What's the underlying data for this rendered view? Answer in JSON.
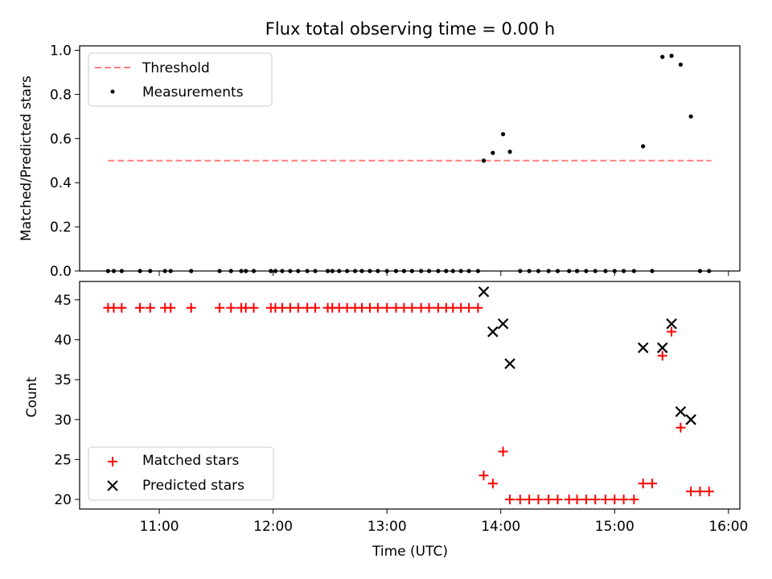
{
  "title": "Flux total observing time = 0.00 h",
  "colors": {
    "threshold": "#ff7f7f",
    "measurement": "#000000",
    "matched": "#ff0000",
    "predicted": "#000000"
  },
  "chart_data": [
    {
      "type": "scatter",
      "panel": "top",
      "ylabel": "Matched/Predicted stars",
      "xlabel": "",
      "xlim": [
        10.3,
        16.1
      ],
      "ylim": [
        0.0,
        1.02
      ],
      "yticks": [
        0.0,
        0.2,
        0.4,
        0.6,
        0.8,
        1.0
      ],
      "ytick_labels": [
        "0.0",
        "0.2",
        "0.4",
        "0.6",
        "0.8",
        "1.0"
      ],
      "xticks": [
        11,
        12,
        13,
        14,
        15,
        16
      ],
      "legend": {
        "location": "top-left",
        "entries": [
          "Threshold",
          "Measurements"
        ]
      },
      "threshold": {
        "name": "Threshold",
        "value": 0.5,
        "x_range": [
          10.55,
          15.85
        ]
      },
      "series": [
        {
          "name": "Measurements",
          "x": [
            10.55,
            10.6,
            10.67,
            10.83,
            10.92,
            11.05,
            11.1,
            11.28,
            11.53,
            11.63,
            11.72,
            11.76,
            11.83,
            11.98,
            12.02,
            12.08,
            12.15,
            12.22,
            12.3,
            12.37,
            12.48,
            12.52,
            12.58,
            12.65,
            12.72,
            12.78,
            12.85,
            12.92,
            13.0,
            13.08,
            13.15,
            13.22,
            13.3,
            13.37,
            13.45,
            13.52,
            13.58,
            13.65,
            13.72,
            13.8,
            13.85,
            13.93,
            14.02,
            14.08,
            14.17,
            14.25,
            14.33,
            14.42,
            14.5,
            14.6,
            14.67,
            14.75,
            14.83,
            14.92,
            15.0,
            15.08,
            15.17,
            15.25,
            15.33,
            15.42,
            15.5,
            15.58,
            15.67,
            15.75,
            15.83
          ],
          "y": [
            0,
            0,
            0,
            0,
            0,
            0,
            0,
            0,
            0,
            0,
            0,
            0,
            0,
            0,
            0,
            0,
            0,
            0,
            0,
            0,
            0,
            0,
            0,
            0,
            0,
            0,
            0,
            0,
            0,
            0,
            0,
            0,
            0,
            0,
            0,
            0,
            0,
            0,
            0,
            0,
            0.5,
            0.535,
            0.62,
            0.54,
            0,
            0,
            0,
            0,
            0,
            0,
            0,
            0,
            0,
            0,
            0,
            0,
            0,
            0.565,
            0,
            0.97,
            0.975,
            0.935,
            0.7,
            0,
            0
          ]
        }
      ]
    },
    {
      "type": "scatter",
      "panel": "bottom",
      "xlabel": "Time (UTC)",
      "ylabel": "Count",
      "xlim": [
        10.3,
        16.1
      ],
      "ylim": [
        18.8,
        47.3
      ],
      "yticks": [
        20,
        25,
        30,
        35,
        40,
        45
      ],
      "ytick_labels": [
        "20",
        "25",
        "30",
        "35",
        "40",
        "45"
      ],
      "xticks": [
        11,
        12,
        13,
        14,
        15,
        16
      ],
      "xtick_labels": [
        "11:00",
        "12:00",
        "13:00",
        "14:00",
        "15:00",
        "16:00"
      ],
      "legend": {
        "location": "bottom-left",
        "entries": [
          "Matched stars",
          "Predicted stars"
        ]
      },
      "series": [
        {
          "name": "Matched stars",
          "x": [
            10.55,
            10.6,
            10.67,
            10.83,
            10.92,
            11.05,
            11.1,
            11.28,
            11.53,
            11.63,
            11.72,
            11.76,
            11.83,
            11.98,
            12.02,
            12.08,
            12.15,
            12.22,
            12.3,
            12.37,
            12.48,
            12.52,
            12.58,
            12.65,
            12.72,
            12.78,
            12.85,
            12.92,
            13.0,
            13.08,
            13.15,
            13.22,
            13.3,
            13.37,
            13.45,
            13.52,
            13.58,
            13.65,
            13.72,
            13.8,
            13.85,
            13.93,
            14.02,
            14.08,
            14.17,
            14.25,
            14.33,
            14.42,
            14.5,
            14.6,
            14.67,
            14.75,
            14.83,
            14.92,
            15.0,
            15.08,
            15.17,
            15.25,
            15.33,
            15.42,
            15.5,
            15.58,
            15.67,
            15.75,
            15.83
          ],
          "y": [
            44,
            44,
            44,
            44,
            44,
            44,
            44,
            44,
            44,
            44,
            44,
            44,
            44,
            44,
            44,
            44,
            44,
            44,
            44,
            44,
            44,
            44,
            44,
            44,
            44,
            44,
            44,
            44,
            44,
            44,
            44,
            44,
            44,
            44,
            44,
            44,
            44,
            44,
            44,
            44,
            23,
            22,
            26,
            20,
            20,
            20,
            20,
            20,
            20,
            20,
            20,
            20,
            20,
            20,
            20,
            20,
            20,
            22,
            22,
            38,
            41,
            29,
            21,
            21,
            21
          ]
        },
        {
          "name": "Predicted stars",
          "x": [
            13.85,
            13.93,
            14.02,
            14.08,
            15.25,
            15.42,
            15.5,
            15.58,
            15.67
          ],
          "y": [
            46,
            41,
            42,
            37,
            39,
            39,
            42,
            31,
            30
          ]
        }
      ]
    }
  ]
}
